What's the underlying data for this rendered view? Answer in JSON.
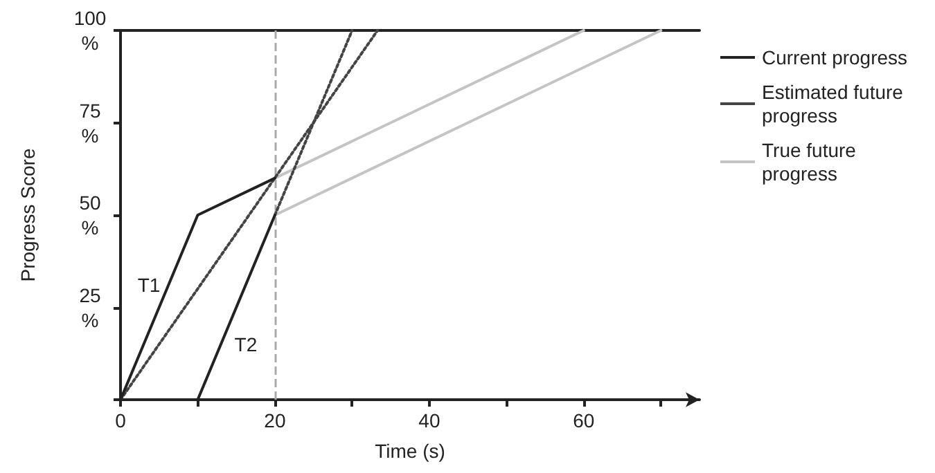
{
  "chart_data": {
    "type": "line",
    "xlabel": "Time (s)",
    "ylabel": "Progress Score",
    "xlim": [
      0,
      75
    ],
    "ylim": [
      0,
      100
    ],
    "xticks": [
      0,
      {
        "value": 10,
        "label": null
      },
      20,
      {
        "value": 30,
        "label": null
      },
      40,
      {
        "value": 50,
        "label": null
      },
      60,
      {
        "value": 70,
        "label": null
      }
    ],
    "yticks": [
      {
        "value": 0,
        "label": null
      },
      {
        "value": 25,
        "label": "25 %"
      },
      {
        "value": 50,
        "label": "50 %"
      },
      {
        "value": 75,
        "label": "75 %"
      },
      {
        "value": 100,
        "label": "100 %"
      }
    ],
    "series": [
      {
        "name": "Current progress",
        "color": "#222222",
        "line_style": "solid",
        "x": [
          0,
          10,
          20
        ],
        "values": [
          0,
          50,
          60
        ]
      },
      {
        "color": "#222222",
        "line_style": "solid",
        "x": [
          10,
          20
        ],
        "values": [
          0,
          50
        ]
      },
      {
        "name": "Estimated future progress",
        "color": "#444444",
        "line_style": "dotted",
        "x": [
          0,
          33.3
        ],
        "values": [
          0,
          100
        ]
      },
      {
        "color": "#444444",
        "line_style": "dotted",
        "x": [
          20,
          30
        ],
        "values": [
          50,
          100
        ]
      },
      {
        "name": "True future progress",
        "color": "#c4c4c4",
        "line_style": "solid",
        "x": [
          20,
          60
        ],
        "values": [
          60,
          100
        ]
      },
      {
        "color": "#c4c4c4",
        "line_style": "solid",
        "x": [
          20,
          70
        ],
        "values": [
          50,
          100
        ]
      }
    ],
    "ref_lines": [
      {
        "axis": "x",
        "value": 20,
        "label": null,
        "color": "#aaaaaa",
        "line_style": "dashed"
      }
    ],
    "annotations": [
      "T1",
      "T2"
    ],
    "marker": "none",
    "grid": false,
    "legend": "right"
  }
}
